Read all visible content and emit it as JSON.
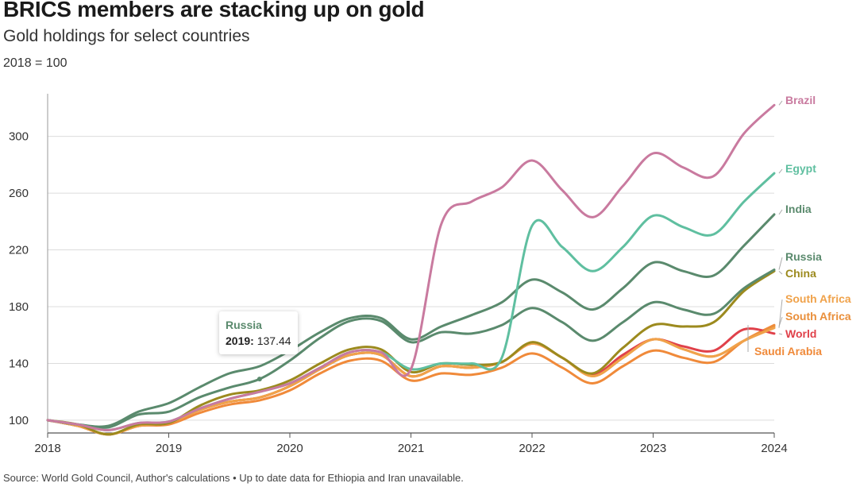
{
  "title": "BRICS members are stacking up on gold",
  "subtitle": "Gold holdings for select countries",
  "index_note": "2018 = 100",
  "source": "Source: World Gold Council, Author's calculations • Up to date data for Ethiopia and Iran unavailable.",
  "tooltip": {
    "series": "Russia",
    "year": "2019",
    "value": "137.44"
  },
  "chart_data": {
    "type": "line",
    "title": "BRICS members are stacking up on gold",
    "subtitle": "Gold holdings for select countries",
    "xlabel": "",
    "ylabel": "",
    "x_ticks": [
      "2018",
      "2019",
      "2020",
      "2021",
      "2022",
      "2023",
      "2024"
    ],
    "y_ticks": [
      100,
      140,
      180,
      220,
      260,
      300
    ],
    "xlim": [
      2018,
      2024
    ],
    "ylim": [
      91,
      330
    ],
    "grid": "horizontal",
    "legend": "line-end labels",
    "x": [
      2018,
      2018.25,
      2018.5,
      2018.75,
      2019,
      2019.25,
      2019.5,
      2019.75,
      2020,
      2020.25,
      2020.5,
      2020.75,
      2021,
      2021.25,
      2021.5,
      2021.75,
      2022,
      2022.25,
      2022.5,
      2022.75,
      2023,
      2023.25,
      2023.5,
      2023.75,
      2024
    ],
    "series": [
      {
        "name": "Brazil",
        "color": "#c97a9f",
        "values": [
          100,
          97,
          93,
          98,
          99,
          108,
          115,
          120,
          126,
          137,
          148,
          148,
          136,
          238,
          254,
          264,
          283,
          262,
          243,
          265,
          288,
          278,
          272,
          302,
          322
        ]
      },
      {
        "name": "Egypt",
        "color": "#5fbfa0",
        "values": [
          100,
          97,
          93,
          98,
          99,
          108,
          115,
          120,
          126,
          137,
          148,
          148,
          136,
          140,
          140,
          144,
          237,
          222,
          205,
          222,
          244,
          236,
          231,
          254,
          274
        ]
      },
      {
        "name": "India",
        "color": "#5a8a6d",
        "values": [
          100,
          97,
          96,
          106,
          112,
          123,
          133,
          138,
          149,
          162,
          172,
          172,
          157,
          166,
          174,
          183,
          199,
          190,
          178,
          193,
          211,
          205,
          202,
          223,
          245
        ]
      },
      {
        "name": "Russia",
        "color": "#5a8a6d",
        "values": [
          100,
          97,
          95,
          104,
          106,
          116,
          123,
          129,
          142,
          158,
          170,
          170,
          155,
          162,
          161,
          167,
          179,
          169,
          156,
          169,
          183,
          178,
          175,
          193,
          206
        ]
      },
      {
        "name": "China",
        "color": "#9c8a1e",
        "values": [
          100,
          97,
          90,
          97,
          98,
          110,
          118,
          121,
          128,
          140,
          150,
          150,
          134,
          140,
          139,
          141,
          155,
          144,
          133,
          151,
          167,
          166,
          169,
          191,
          205
        ]
      },
      {
        "name": "South Africa",
        "color": "#f0a24a",
        "values": [
          100,
          96,
          90,
          96,
          98,
          107,
          113,
          116,
          124,
          136,
          146,
          146,
          131,
          138,
          137,
          141,
          154,
          144,
          131,
          144,
          157,
          150,
          145,
          156,
          165
        ]
      },
      {
        "name": "South Africa",
        "color": "#e98f3b",
        "values": [
          100,
          96,
          90,
          96,
          98,
          107,
          113,
          116,
          124,
          136,
          146,
          146,
          131,
          138,
          137,
          141,
          154,
          144,
          131,
          144,
          157,
          150,
          145,
          156,
          166
        ]
      },
      {
        "name": "World",
        "color": "#e0414a",
        "values": [
          100,
          96,
          90,
          96,
          98,
          107,
          113,
          116,
          124,
          136,
          146,
          146,
          131,
          138,
          137,
          141,
          154,
          144,
          132,
          146,
          157,
          152,
          149,
          164,
          161
        ]
      },
      {
        "name": "Saudi Arabia",
        "color": "#f08a3a",
        "values": [
          100,
          96,
          90,
          96,
          97,
          105,
          111,
          114,
          121,
          133,
          142,
          142,
          128,
          133,
          132,
          137,
          147,
          137,
          126,
          138,
          149,
          144,
          141,
          156,
          167
        ]
      }
    ]
  }
}
